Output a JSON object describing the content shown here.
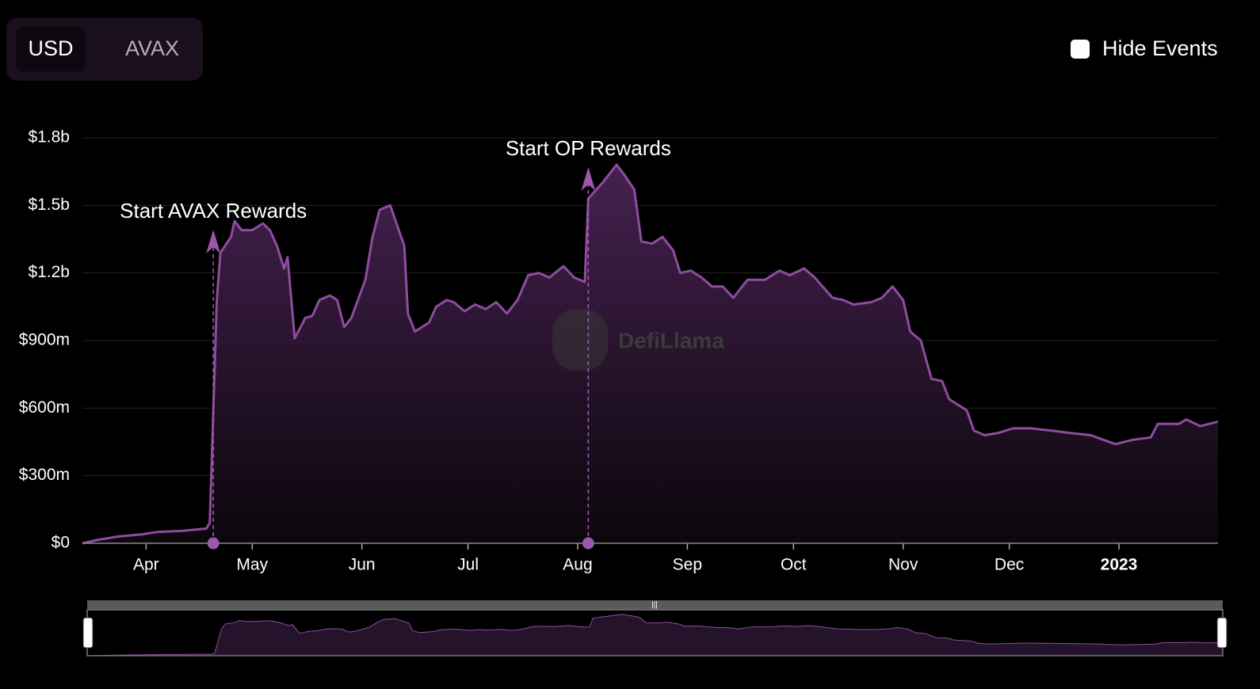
{
  "toggle": {
    "options": [
      "USD",
      "AVAX"
    ]
  },
  "checkbox_label": "Hide Events",
  "watermark": "DefiLlama",
  "chart_data": {
    "type": "line",
    "x": [
      0,
      4,
      10,
      17,
      21,
      28,
      35,
      36,
      38,
      39,
      42,
      43,
      45,
      48,
      51,
      53,
      55,
      57,
      58,
      60,
      63,
      65,
      67,
      70,
      72,
      74,
      76,
      80,
      82,
      84,
      87,
      89,
      91,
      92,
      94,
      98,
      100,
      103,
      105,
      108,
      111,
      114,
      117,
      120,
      123,
      126,
      129,
      132,
      136,
      139,
      142,
      143,
      147,
      151,
      153,
      156,
      158,
      161,
      164,
      167,
      169,
      172,
      175,
      178,
      181,
      184,
      188,
      193,
      197,
      200,
      204,
      207,
      212,
      215,
      218,
      223,
      226,
      229,
      232,
      234,
      237,
      240,
      243,
      245,
      250,
      252,
      255,
      259,
      263,
      268,
      274,
      279,
      285,
      292,
      297,
      302,
      304,
      310,
      312,
      316,
      321
    ],
    "series": [
      {
        "name": "TVL",
        "color": "#8e4c9f",
        "values": [
          0,
          14000000,
          30000000,
          40000000,
          50000000,
          55000000,
          65000000,
          90000000,
          1080000000,
          1290000000,
          1360000000,
          1430000000,
          1390000000,
          1390000000,
          1420000000,
          1390000000,
          1320000000,
          1220000000,
          1270000000,
          910000000,
          1000000000,
          1010000000,
          1080000000,
          1100000000,
          1080000000,
          960000000,
          1000000000,
          1170000000,
          1360000000,
          1480000000,
          1500000000,
          1410000000,
          1320000000,
          1020000000,
          940000000,
          980000000,
          1050000000,
          1080000000,
          1070000000,
          1030000000,
          1060000000,
          1040000000,
          1070000000,
          1020000000,
          1080000000,
          1190000000,
          1200000000,
          1180000000,
          1230000000,
          1180000000,
          1160000000,
          1530000000,
          1600000000,
          1680000000,
          1640000000,
          1570000000,
          1340000000,
          1330000000,
          1360000000,
          1300000000,
          1200000000,
          1210000000,
          1180000000,
          1140000000,
          1140000000,
          1090000000,
          1170000000,
          1170000000,
          1210000000,
          1190000000,
          1220000000,
          1180000000,
          1090000000,
          1080000000,
          1060000000,
          1070000000,
          1090000000,
          1140000000,
          1080000000,
          940000000,
          900000000,
          730000000,
          720000000,
          640000000,
          590000000,
          500000000,
          480000000,
          490000000,
          510000000,
          510000000,
          500000000,
          490000000,
          480000000,
          440000000,
          460000000,
          470000000,
          530000000,
          530000000,
          550000000,
          520000000,
          540000000
        ]
      }
    ],
    "xlim": [
      0,
      321
    ],
    "xticks": [
      {
        "value": 18,
        "label": "Apr"
      },
      {
        "value": 48,
        "label": "May"
      },
      {
        "value": 79,
        "label": "Jun"
      },
      {
        "value": 109,
        "label": "Jul"
      },
      {
        "value": 140,
        "label": "Aug"
      },
      {
        "value": 171,
        "label": "Sep"
      },
      {
        "value": 201,
        "label": "Oct"
      },
      {
        "value": 232,
        "label": "Nov"
      },
      {
        "value": 262,
        "label": "Dec"
      },
      {
        "value": 293,
        "label": "2023"
      }
    ],
    "ylim": [
      0,
      1800000000
    ],
    "yticks": [
      {
        "value": 0,
        "label": "$0"
      },
      {
        "value": 300000000,
        "label": "$300m"
      },
      {
        "value": 600000000,
        "label": "$600m"
      },
      {
        "value": 900000000,
        "label": "$900m"
      },
      {
        "value": 1200000000,
        "label": "$1.2b"
      },
      {
        "value": 1500000000,
        "label": "$1.5b"
      },
      {
        "value": 1800000000,
        "label": "$1.8b"
      }
    ],
    "grid": true,
    "annotations": [
      {
        "x": 37,
        "text": "Start AVAX Rewards"
      },
      {
        "x": 143,
        "text": "Start OP Rewards"
      }
    ]
  }
}
